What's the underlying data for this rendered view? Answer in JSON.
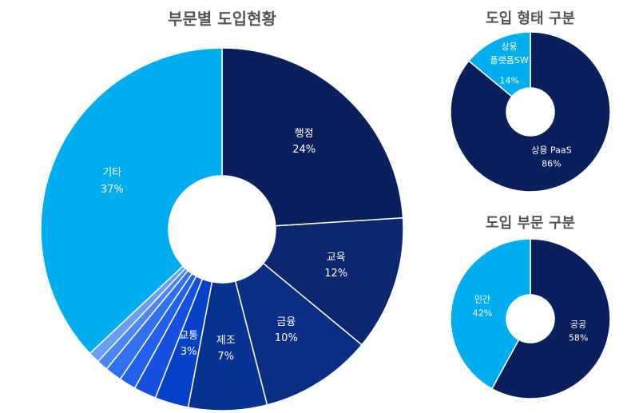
{
  "chart_data": [
    {
      "type": "donut",
      "title": "부문별 도입현황",
      "categories": [
        "행정",
        "교육",
        "금융",
        "제조",
        "교통",
        null,
        null,
        null,
        null,
        null,
        "기타"
      ],
      "values": [
        24,
        12,
        10,
        7,
        3,
        2,
        1.5,
        1.5,
        1,
        1,
        37
      ],
      "value_labels": [
        "24%",
        "12%",
        "10%",
        "7%",
        "3%",
        null,
        null,
        null,
        null,
        null,
        "37%"
      ],
      "colors": [
        "#0a1f5c",
        "#0d2670",
        "#0b2e85",
        "#08328f",
        "#0540c8",
        "#1550e0",
        "#2260ee",
        "#3270f2",
        "#4a86f5",
        "#6a9ef7",
        "#00aeef"
      ]
    },
    {
      "type": "donut",
      "title": "도입 형태 구분",
      "categories": [
        "상용 PaaS",
        "상용\n플랫폼SW"
      ],
      "values": [
        86,
        14
      ],
      "value_labels": [
        "86%",
        "14%"
      ],
      "colors": [
        "#0a1f5c",
        "#00aeef"
      ]
    },
    {
      "type": "donut",
      "title": "도입 부문 구분",
      "categories": [
        "공공",
        "민간"
      ],
      "values": [
        58,
        42
      ],
      "value_labels": [
        "58%",
        "42%"
      ],
      "colors": [
        "#0a1f5c",
        "#00aeef"
      ]
    }
  ]
}
